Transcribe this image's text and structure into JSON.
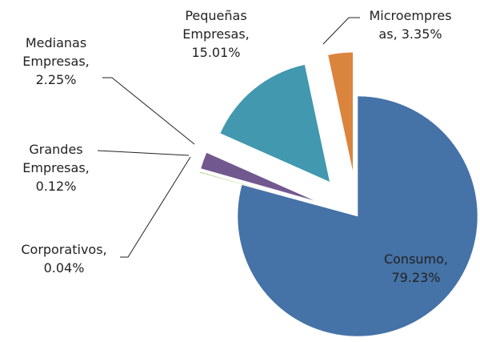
{
  "chart_data": {
    "type": "pie",
    "categories": [
      "Consumo",
      "Corporativos",
      "Grandes Empresas",
      "Medianas Empresas",
      "Pequeñas Empresas",
      "Microempresas"
    ],
    "values": [
      79.23,
      0.04,
      0.12,
      2.25,
      15.01,
      3.35
    ],
    "value_labels": [
      "79.23%",
      "0.04%",
      "0.12%",
      "2.25%",
      "15.01%",
      "3.35%"
    ],
    "label_separator": ",",
    "colors": [
      "#4572a7",
      "#4a6b2f",
      "#9bbb59",
      "#71588f",
      "#4198af",
      "#db843d"
    ]
  }
}
